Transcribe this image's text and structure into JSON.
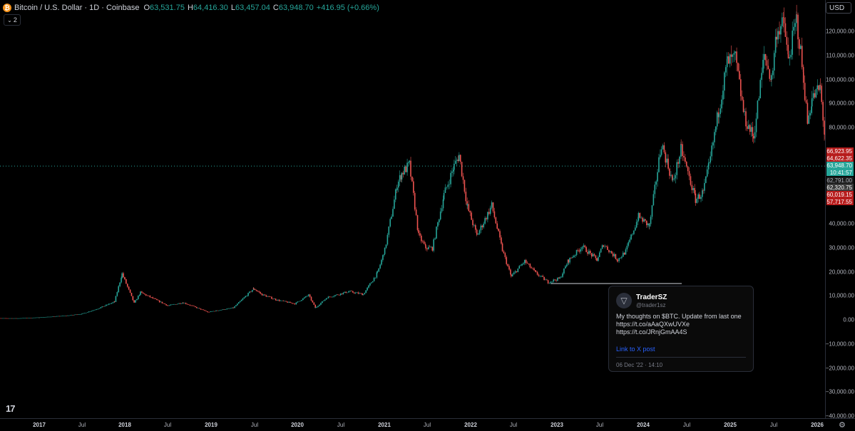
{
  "header": {
    "title": "Bitcoin / U.S. Dollar · 1D · Coinbase",
    "open_label": "O",
    "open": "63,531.75",
    "high_label": "H",
    "high": "64,416.30",
    "low_label": "L",
    "low": "63,457.04",
    "close_label": "C",
    "close": "63,948.70",
    "change": "+416.95 (+0.66%)",
    "indicator_toggle": "2",
    "coin_icon": "bitcoin-icon"
  },
  "currency": "USD",
  "colors": {
    "up": "#26a69a",
    "down": "#ef5350",
    "bitcoin": "#f7931a",
    "link": "#2962ff"
  },
  "price_axis": {
    "labels": [
      {
        "v": 120000,
        "t": "120,000.00"
      },
      {
        "v": 110000,
        "t": "110,000.00"
      },
      {
        "v": 100000,
        "t": "100,000.00"
      },
      {
        "v": 90000,
        "t": "90,000.00"
      },
      {
        "v": 80000,
        "t": "80,000.00"
      },
      {
        "v": 40000,
        "t": "40,000.00"
      },
      {
        "v": 30000,
        "t": "30,000.00"
      },
      {
        "v": 20000,
        "t": "20,000.00"
      },
      {
        "v": 10000,
        "t": "10,000.00"
      },
      {
        "v": 0,
        "t": "0.00"
      },
      {
        "v": -10000,
        "t": "−10,000.00"
      },
      {
        "v": -20000,
        "t": "−20,000.00"
      },
      {
        "v": -30000,
        "t": "−30,000.00"
      },
      {
        "v": -40000,
        "t": "−40,000.00"
      }
    ],
    "price_boxes": [
      {
        "t": "66,923.95",
        "color": "#b71c1c"
      },
      {
        "t": "64,622.35",
        "color": "#b71c1c"
      },
      {
        "t": "63,948.70",
        "color": "#26a69a"
      },
      {
        "t": "10:41:57",
        "color": "#26a69a"
      },
      {
        "t": "62,791.00",
        "color": "#1a1a1a"
      },
      {
        "t": "62,320.75",
        "color": "#3a3a3a"
      },
      {
        "t": "60,019.15",
        "color": "#b71c1c"
      },
      {
        "t": "57,717.55",
        "color": "#b71c1c"
      }
    ]
  },
  "time_axis": {
    "labels": [
      {
        "t": "2017",
        "kind": "year"
      },
      {
        "t": "Jul",
        "kind": "month"
      },
      {
        "t": "2018",
        "kind": "year"
      },
      {
        "t": "Jul",
        "kind": "month"
      },
      {
        "t": "2019",
        "kind": "year"
      },
      {
        "t": "Jul",
        "kind": "month"
      },
      {
        "t": "2020",
        "kind": "year"
      },
      {
        "t": "Jul",
        "kind": "month"
      },
      {
        "t": "2021",
        "kind": "year"
      },
      {
        "t": "Jul",
        "kind": "month"
      },
      {
        "t": "2022",
        "kind": "year"
      },
      {
        "t": "Jul",
        "kind": "month"
      },
      {
        "t": "2023",
        "kind": "year"
      },
      {
        "t": "Jul",
        "kind": "month"
      },
      {
        "t": "2024",
        "kind": "year"
      },
      {
        "t": "Jul",
        "kind": "month"
      },
      {
        "t": "2025",
        "kind": "year"
      },
      {
        "t": "Jul",
        "kind": "month"
      },
      {
        "t": "2026",
        "kind": "year"
      }
    ]
  },
  "tweet": {
    "name": "TraderSZ",
    "handle": "@trader1sz",
    "body_line1": "My thoughts on $BTC. Update from last one",
    "body_line2": "https://t.co/aAaQXwUVXe",
    "body_line3": "https://t.co/JRnjGmAA4S",
    "link_text": "Link to X post",
    "date": "06 Dec '22 · 14:10"
  },
  "chart_data": {
    "type": "line",
    "y_range": [
      -40000,
      125000
    ],
    "x_range": [
      "2016-06-20",
      "2026-02-15"
    ],
    "current_price": 63948.7,
    "series": [
      {
        "x": [
          "2016-06-20",
          "2016-10-01",
          "2017-01-01",
          "2017-05-01",
          "2017-07-01",
          "2017-09-01",
          "2017-11-15",
          "2017-12-17",
          "2018-02-06",
          "2018-03-05",
          "2018-06-29",
          "2018-09-01",
          "2018-12-15",
          "2019-04-01",
          "2019-06-26",
          "2019-08-01",
          "2019-10-01",
          "2019-12-17",
          "2020-02-13",
          "2020-03-13",
          "2020-05-01",
          "2020-08-01",
          "2020-10-01",
          "2020-11-30",
          "2020-12-31",
          "2021-02-21",
          "2021-03-13",
          "2021-04-14",
          "2021-05-23",
          "2021-06-22",
          "2021-07-20",
          "2021-09-07",
          "2021-10-20",
          "2021-11-10",
          "2021-12-15",
          "2022-01-24",
          "2022-03-28",
          "2022-05-12",
          "2022-06-18",
          "2022-08-14",
          "2022-10-01",
          "2022-11-21",
          "2023-01-10",
          "2023-02-15",
          "2023-04-14",
          "2023-06-15",
          "2023-07-13",
          "2023-09-11",
          "2023-10-15",
          "2023-12-08",
          "2024-01-23",
          "2024-03-14",
          "2024-05-01",
          "2024-06-05",
          "2024-08-05",
          "2024-09-06",
          "2024-10-01",
          "2024-11-12",
          "2024-12-17",
          "2025-01-20",
          "2025-02-28",
          "2025-04-07",
          "2025-05-22",
          "2025-06-22",
          "2025-07-14",
          "2025-08-14",
          "2025-09-01",
          "2025-10-06",
          "2025-11-04",
          "2025-11-21",
          "2025-12-10",
          "2026-01-14",
          "2026-02-01",
          "2026-02-06"
        ],
        "y": [
          700,
          650,
          1000,
          1800,
          2500,
          4500,
          7500,
          19200,
          7000,
          11400,
          5900,
          7200,
          3250,
          5000,
          13000,
          10500,
          8300,
          6700,
          10300,
          5000,
          9300,
          11800,
          10600,
          19500,
          29000,
          56000,
          61000,
          64500,
          35000,
          30000,
          29800,
          52000,
          64000,
          68500,
          47000,
          35000,
          47500,
          29000,
          18000,
          24400,
          19400,
          15700,
          17300,
          24700,
          30500,
          25000,
          31500,
          25000,
          28500,
          43000,
          39000,
          73500,
          57000,
          71000,
          50000,
          53000,
          64000,
          88000,
          107000,
          108500,
          84000,
          76000,
          110000,
          100000,
          120500,
          123000,
          108000,
          125000,
          101000,
          82000,
          92000,
          96500,
          77000,
          63948.7
        ]
      }
    ]
  }
}
